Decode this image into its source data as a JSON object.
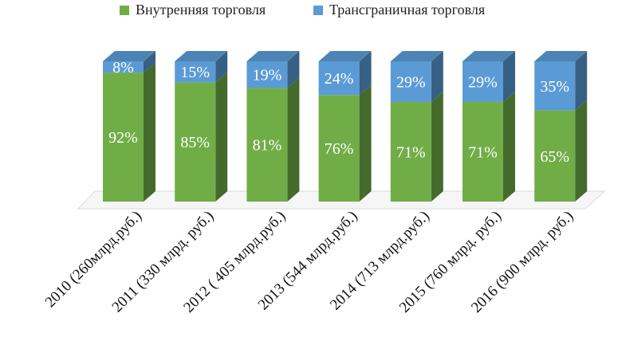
{
  "chart_data": {
    "type": "bar",
    "stacked": true,
    "three_d": true,
    "categories": [
      "2010 (260млрд.руб.)",
      "2011 (330 млрд. руб.)",
      "2012 ( 405 млрд.руб.)",
      "2013 (544 млрд.руб.)",
      "2014 (713 млрд.руб.)",
      "2015 (760 млрд. руб.)",
      "2016 (900 млрд. руб.)"
    ],
    "series": [
      {
        "name": "Внутренняя торговля",
        "color": "#70ad47",
        "values": [
          92,
          85,
          81,
          76,
          71,
          71,
          65
        ],
        "labels": [
          "92%",
          "85%",
          "81%",
          "76%",
          "71%",
          "71%",
          "65%"
        ]
      },
      {
        "name": "Трансграничная торговля",
        "color": "#5b9bd5",
        "values": [
          8,
          15,
          19,
          24,
          29,
          29,
          35
        ],
        "labels": [
          "8%",
          "15%",
          "19%",
          "24%",
          "29%",
          "29%",
          "35%"
        ]
      }
    ],
    "ylim": [
      0,
      100
    ],
    "legend": "top",
    "grid": false
  }
}
